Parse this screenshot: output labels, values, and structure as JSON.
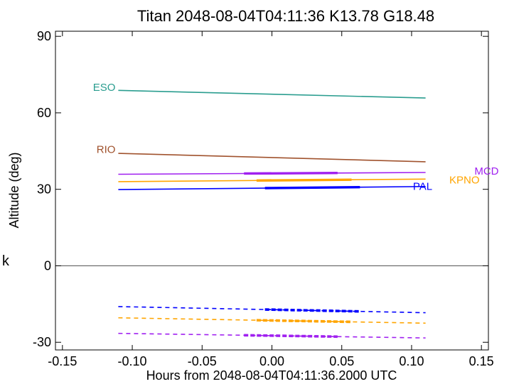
{
  "chart_data": {
    "type": "line",
    "title": "Titan 2048-08-04T04:11:36  K13.78  G18.48",
    "xlabel": "Hours from 2048-08-04T04:11:36.2000 UTC",
    "ylabel": "Altitude (deg)",
    "xlim": [
      -0.155,
      0.155
    ],
    "ylim": [
      -33,
      92
    ],
    "xticks": [
      -0.15,
      -0.1,
      -0.05,
      0.0,
      0.05,
      0.1,
      0.15
    ],
    "xtick_labels": [
      "-0.15",
      "-0.10",
      "-0.05",
      "0.00",
      "0.05",
      "0.10",
      "0.15"
    ],
    "yticks": [
      -30,
      0,
      30,
      60,
      90
    ],
    "ytick_labels": [
      "-30",
      "0",
      "30",
      "60",
      "90"
    ],
    "zero_line": 0,
    "grid": false,
    "side_label": "k",
    "series": [
      {
        "name": "ESO",
        "color": "#2a9d8f",
        "label_x": -0.112,
        "label_y": 70.0,
        "label_anchor": "end",
        "x": [
          -0.11,
          0.11
        ],
        "y": [
          68.8,
          65.8
        ],
        "thick": null,
        "dashed": null
      },
      {
        "name": "RIO",
        "color": "#a0522d",
        "label_x": -0.112,
        "label_y": 45.6,
        "label_anchor": "end",
        "x": [
          -0.11,
          0.11
        ],
        "y": [
          44.1,
          40.8
        ],
        "thick": null,
        "dashed": null
      },
      {
        "name": "MCD",
        "color": "#a020f0",
        "label_x": 0.145,
        "label_y": 37.1,
        "label_anchor": "start",
        "x": [
          -0.11,
          0.11
        ],
        "y": [
          35.9,
          36.6
        ],
        "thick": [
          -0.02,
          0.047
        ],
        "dashed": {
          "x": [
            -0.11,
            0.11
          ],
          "y": [
            -26.5,
            -28.3
          ],
          "thick": [
            -0.02,
            0.047
          ]
        }
      },
      {
        "name": "KPNO",
        "color": "#ffa500",
        "label_x": 0.127,
        "label_y": 33.7,
        "label_anchor": "start",
        "x": [
          -0.11,
          0.11
        ],
        "y": [
          33.0,
          34.0
        ],
        "thick": [
          -0.011,
          0.057
        ],
        "dashed": {
          "x": [
            -0.11,
            0.11
          ],
          "y": [
            -20.4,
            -22.5
          ],
          "thick": [
            -0.011,
            0.057
          ]
        }
      },
      {
        "name": "PAL",
        "color": "#0000ff",
        "label_x": 0.101,
        "label_y": 31.2,
        "label_anchor": "start",
        "x": [
          -0.11,
          0.11
        ],
        "y": [
          29.9,
          31.1
        ],
        "thick": [
          -0.005,
          0.063
        ],
        "dashed": {
          "x": [
            -0.11,
            0.11
          ],
          "y": [
            -16.0,
            -18.4
          ],
          "thick": [
            -0.005,
            0.063
          ]
        }
      }
    ]
  }
}
